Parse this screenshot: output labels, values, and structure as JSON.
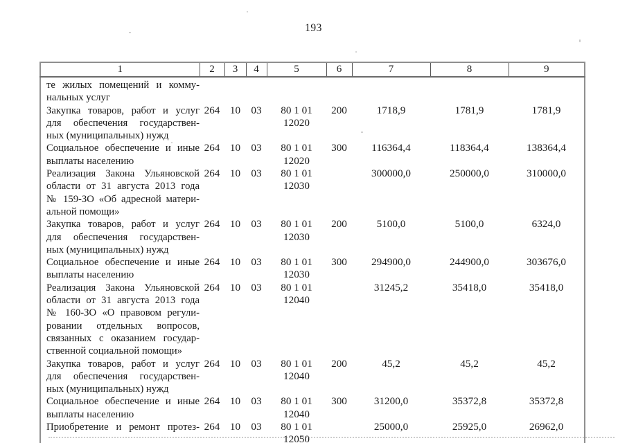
{
  "page": {
    "number": "193"
  },
  "colors": {
    "text": "#1c1c1c",
    "border_dark": "#555555",
    "border_gray": "#8f8f8f",
    "paper": "#ffffff"
  },
  "table": {
    "headers": [
      "1",
      "2",
      "3",
      "4",
      "5",
      "6",
      "7",
      "8",
      "9"
    ],
    "rows": [
      {
        "name_lines": [
          "те жилых помещений и комму-",
          "нальных услуг"
        ],
        "c2": "",
        "c3": "",
        "c4": "",
        "c5": "",
        "c6": "",
        "c7": "",
        "c8": "",
        "c9": ""
      },
      {
        "name_lines": [
          "Закупка товаров, работ и услуг",
          "для обеспечения государствен-",
          "ных (муниципальных) нужд"
        ],
        "c2": "264",
        "c3": "10",
        "c4": "03",
        "c5": "80 1 01 12020",
        "c6": "200",
        "c7": "1718,9",
        "c8": "1781,9",
        "c9": "1781,9"
      },
      {
        "name_lines": [
          "Социальное обеспечение и иные",
          "выплаты населению"
        ],
        "c2": "264",
        "c3": "10",
        "c4": "03",
        "c5": "80 1 01 12020",
        "c6": "300",
        "c7": "116364,4",
        "c8": "118364,4",
        "c9": "138364,4"
      },
      {
        "name_lines": [
          "Реализация Закона Ульяновской",
          "области от 31 августа 2013 года",
          "№ 159-ЗО «Об адресной матери-",
          "альной помощи»"
        ],
        "c2": "264",
        "c3": "10",
        "c4": "03",
        "c5": "80 1 01 12030",
        "c6": "",
        "c7": "300000,0",
        "c8": "250000,0",
        "c9": "310000,0"
      },
      {
        "name_lines": [
          "Закупка товаров, работ и услуг",
          "для обеспечения государствен-",
          "ных (муниципальных) нужд"
        ],
        "c2": "264",
        "c3": "10",
        "c4": "03",
        "c5": "80 1 01 12030",
        "c6": "200",
        "c7": "5100,0",
        "c8": "5100,0",
        "c9": "6324,0"
      },
      {
        "name_lines": [
          "Социальное обеспечение и иные",
          "выплаты населению"
        ],
        "c2": "264",
        "c3": "10",
        "c4": "03",
        "c5": "80 1 01 12030",
        "c6": "300",
        "c7": "294900,0",
        "c8": "244900,0",
        "c9": "303676,0"
      },
      {
        "name_lines": [
          "Реализация Закона Ульяновской",
          "области от 31 августа 2013 года",
          "№ 160-ЗО «О правовом регули-",
          "ровании отдельных вопросов,",
          "связанных с оказанием государ-",
          "ственной социальной помощи»"
        ],
        "c2": "264",
        "c3": "10",
        "c4": "03",
        "c5": "80 1 01 12040",
        "c6": "",
        "c7": "31245,2",
        "c8": "35418,0",
        "c9": "35418,0"
      },
      {
        "name_lines": [
          "Закупка товаров, работ и услуг",
          "для обеспечения государствен-",
          "ных (муниципальных) нужд"
        ],
        "c2": "264",
        "c3": "10",
        "c4": "03",
        "c5": "80 1 01 12040",
        "c6": "200",
        "c7": "45,2",
        "c8": "45,2",
        "c9": "45,2"
      },
      {
        "name_lines": [
          "Социальное обеспечение и иные",
          "выплаты населению"
        ],
        "c2": "264",
        "c3": "10",
        "c4": "03",
        "c5": "80 1 01 12040",
        "c6": "300",
        "c7": "31200,0",
        "c8": "35372,8",
        "c9": "35372,8"
      },
      {
        "name_lines": [
          "Приобретение и ремонт протез-"
        ],
        "last_line_justified": true,
        "c2": "264",
        "c3": "10",
        "c4": "03",
        "c5": "80 1 01 12050",
        "c6": "",
        "c7": "25000,0",
        "c8": "25925,0",
        "c9": "26962,0"
      }
    ]
  }
}
